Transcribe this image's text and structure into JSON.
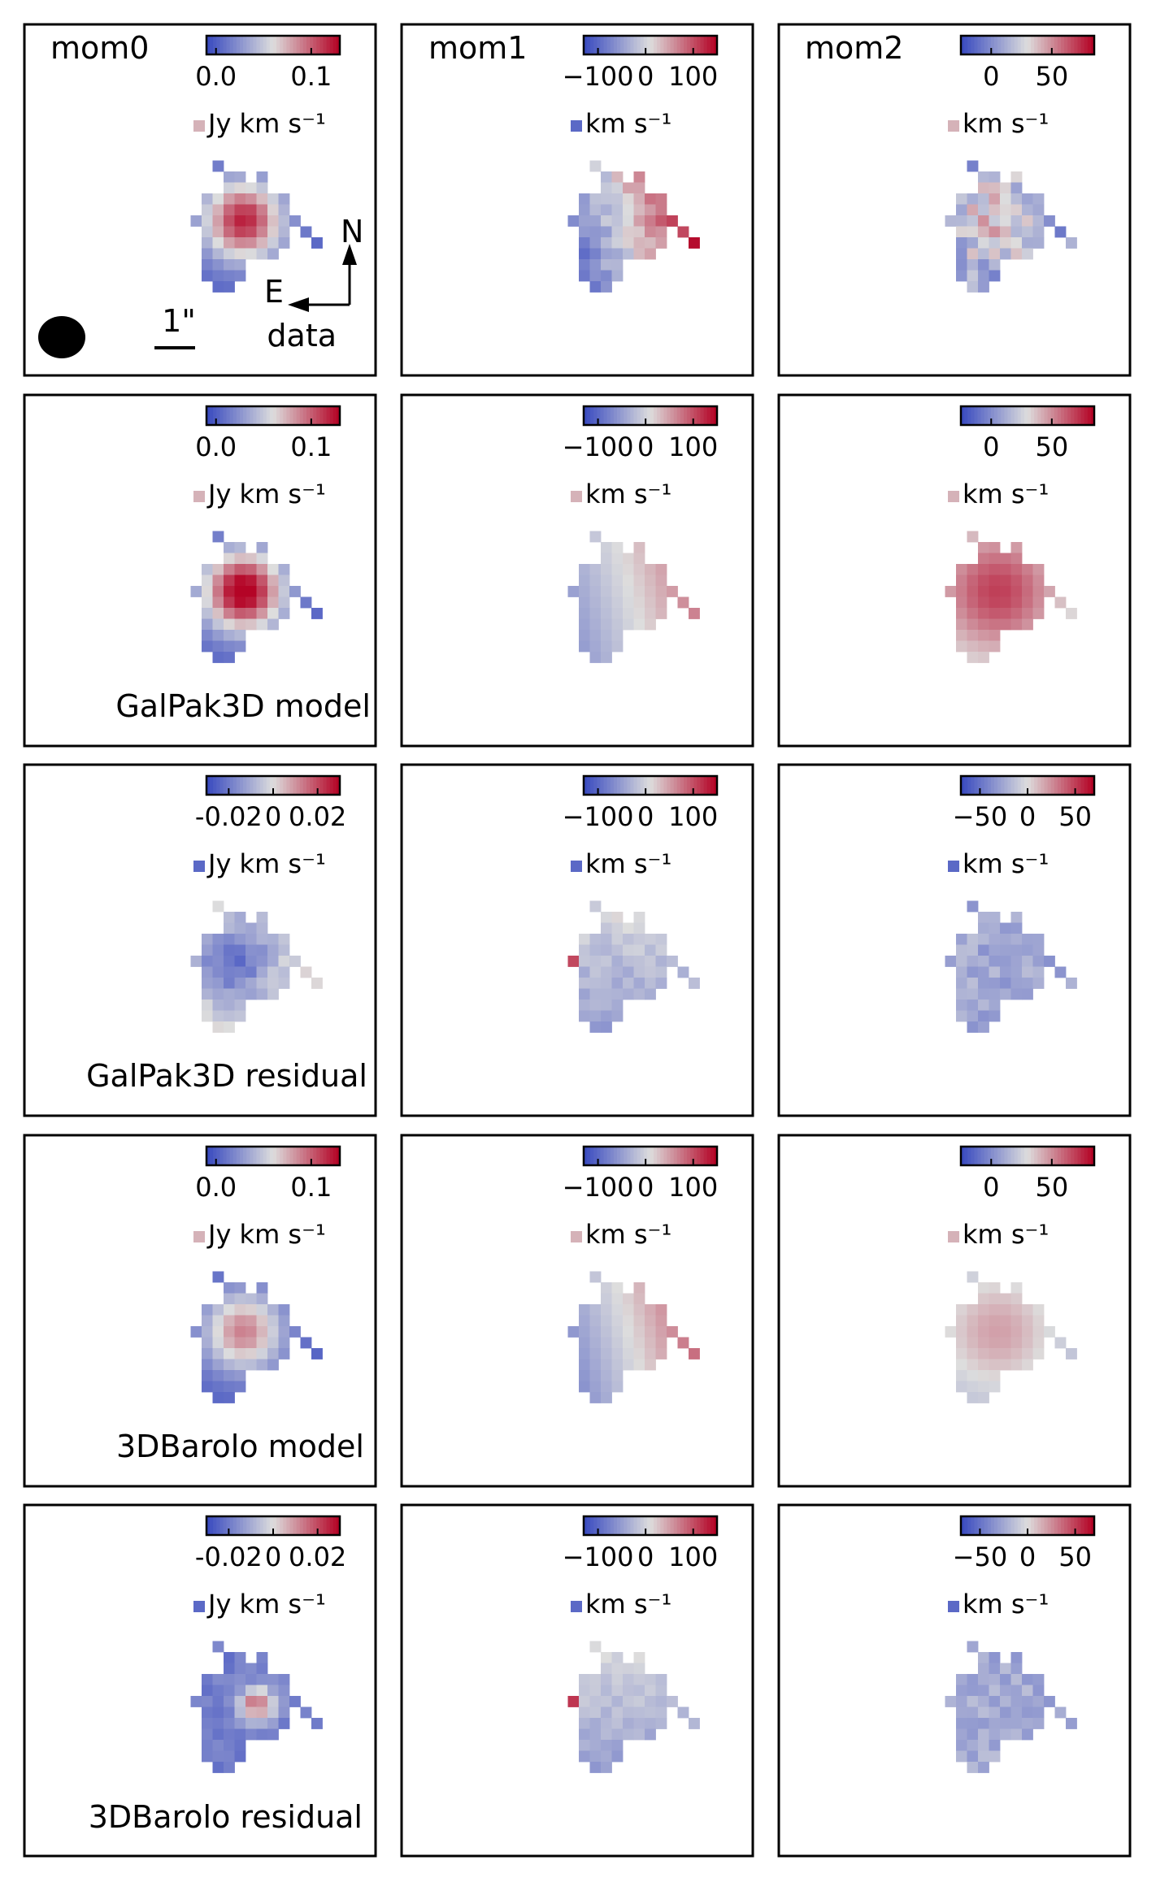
{
  "figure": {
    "columns": [
      "mom0",
      "mom1",
      "mom2"
    ],
    "row_labels": [
      "data",
      "GalPak3D model",
      "GalPak3D residual",
      "3DBarolo model",
      "3DBarolo residual"
    ],
    "annotations": {
      "compass_north": "N",
      "compass_east": "E",
      "scale_bar": "1\""
    }
  },
  "colors": {
    "cmap_low": "#3b4cc0",
    "cmap_mid": "#dddddd",
    "cmap_high": "#b40426",
    "frame": "#000000"
  },
  "chart_data": [
    {
      "type": "heatmap",
      "row": "data",
      "column": "mom0",
      "colorbar": {
        "ticks": [
          "0.0",
          "0.1"
        ],
        "range": [
          -0.01,
          0.13
        ],
        "unit": "Jy km s⁻¹"
      },
      "pattern": "mom0",
      "amplitude": 1.0,
      "noise": 0.08
    },
    {
      "type": "heatmap",
      "row": "data",
      "column": "mom1",
      "colorbar": {
        "ticks": [
          "−100",
          "0",
          "100"
        ],
        "range": [
          -130,
          150
        ],
        "unit": "km s⁻¹"
      },
      "pattern": "mom1",
      "amplitude": 1.0,
      "noise": 0.35
    },
    {
      "type": "heatmap",
      "row": "data",
      "column": "mom2",
      "colorbar": {
        "ticks": [
          "0",
          "50"
        ],
        "range": [
          -25,
          85
        ],
        "unit": "km s⁻¹"
      },
      "pattern": "mom2",
      "amplitude": 1.0,
      "noise": 0.45
    },
    {
      "type": "heatmap",
      "row": "GalPak3D model",
      "column": "mom0",
      "colorbar": {
        "ticks": [
          "0.0",
          "0.1"
        ],
        "range": [
          -0.01,
          0.13
        ],
        "unit": "Jy km s⁻¹"
      },
      "pattern": "mom0",
      "amplitude": 1.15,
      "noise": 0.0
    },
    {
      "type": "heatmap",
      "row": "GalPak3D model",
      "column": "mom1",
      "colorbar": {
        "ticks": [
          "−100",
          "0",
          "100"
        ],
        "range": [
          -130,
          150
        ],
        "unit": "km s⁻¹"
      },
      "pattern": "mom1",
      "amplitude": 0.55,
      "noise": 0.0
    },
    {
      "type": "heatmap",
      "row": "GalPak3D model",
      "column": "mom2",
      "colorbar": {
        "ticks": [
          "0",
          "50"
        ],
        "range": [
          -25,
          85
        ],
        "unit": "km s⁻¹"
      },
      "pattern": "mom2model",
      "amplitude": 1.0,
      "noise": 0.0
    },
    {
      "type": "heatmap",
      "row": "GalPak3D residual",
      "column": "mom0",
      "colorbar": {
        "ticks": [
          "-0.02",
          "0",
          "0.02"
        ],
        "range": [
          -0.03,
          0.03
        ],
        "unit": "Jy km s⁻¹"
      },
      "pattern": "resid0",
      "amplitude": 1.0,
      "noise": 0.4
    },
    {
      "type": "heatmap",
      "row": "GalPak3D residual",
      "column": "mom1",
      "colorbar": {
        "ticks": [
          "−100",
          "0",
          "100"
        ],
        "range": [
          -130,
          150
        ],
        "unit": "km s⁻¹"
      },
      "pattern": "resid1",
      "amplitude": 1.0,
      "noise": 0.3
    },
    {
      "type": "heatmap",
      "row": "GalPak3D residual",
      "column": "mom2",
      "colorbar": {
        "ticks": [
          "−50",
          "0",
          "50"
        ],
        "range": [
          -70,
          70
        ],
        "unit": "km s⁻¹"
      },
      "pattern": "resid2",
      "amplitude": 1.0,
      "noise": 0.4
    },
    {
      "type": "heatmap",
      "row": "3DBarolo model",
      "column": "mom0",
      "colorbar": {
        "ticks": [
          "0.0",
          "0.1"
        ],
        "range": [
          -0.01,
          0.13
        ],
        "unit": "Jy km s⁻¹"
      },
      "pattern": "mom0",
      "amplitude": 0.75,
      "noise": 0.0
    },
    {
      "type": "heatmap",
      "row": "3DBarolo model",
      "column": "mom1",
      "colorbar": {
        "ticks": [
          "−100",
          "0",
          "100"
        ],
        "range": [
          -130,
          150
        ],
        "unit": "km s⁻¹"
      },
      "pattern": "mom1",
      "amplitude": 0.65,
      "noise": 0.0
    },
    {
      "type": "heatmap",
      "row": "3DBarolo model",
      "column": "mom2",
      "colorbar": {
        "ticks": [
          "0",
          "50"
        ],
        "range": [
          -25,
          85
        ],
        "unit": "km s⁻¹"
      },
      "pattern": "mom2model",
      "amplitude": 0.65,
      "noise": 0.0
    },
    {
      "type": "heatmap",
      "row": "3DBarolo residual",
      "column": "mom0",
      "colorbar": {
        "ticks": [
          "-0.02",
          "0",
          "0.02"
        ],
        "range": [
          -0.03,
          0.03
        ],
        "unit": "Jy km s⁻¹"
      },
      "pattern": "resid0b",
      "amplitude": 1.0,
      "noise": 0.4
    },
    {
      "type": "heatmap",
      "row": "3DBarolo residual",
      "column": "mom1",
      "colorbar": {
        "ticks": [
          "−100",
          "0",
          "100"
        ],
        "range": [
          -130,
          150
        ],
        "unit": "km s⁻¹"
      },
      "pattern": "resid1",
      "amplitude": 1.0,
      "noise": 0.25
    },
    {
      "type": "heatmap",
      "row": "3DBarolo residual",
      "column": "mom2",
      "colorbar": {
        "ticks": [
          "−50",
          "0",
          "50"
        ],
        "range": [
          -70,
          70
        ],
        "unit": "km s⁻¹"
      },
      "pattern": "resid2",
      "amplitude": 1.0,
      "noise": 0.35
    }
  ]
}
